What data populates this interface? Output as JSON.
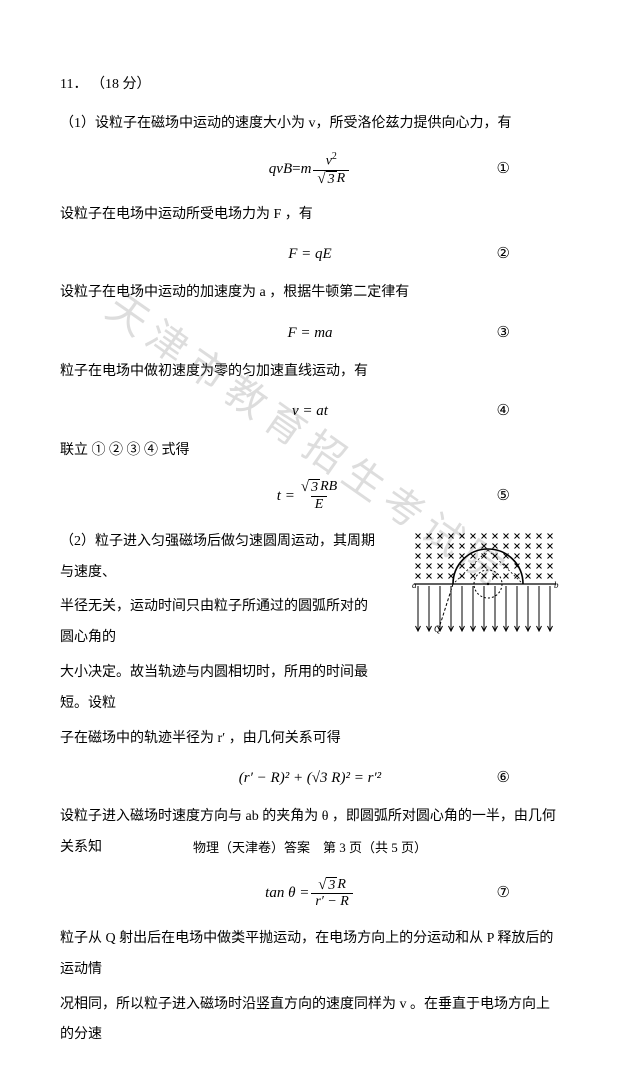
{
  "question": {
    "number": "11．",
    "points": "（18 分）"
  },
  "lines": {
    "p1": "（1）设粒子在磁场中运动的速度大小为 v，所受洛伦兹力提供向心力，有",
    "p2": "设粒子在电场中运动所受电场力为 F ，有",
    "p3": "设粒子在电场中运动的加速度为 a ，根据牛顿第二定律有",
    "p4": "粒子在电场中做初速度为零的匀加速直线运动，有",
    "p5": "联立 ① ② ③ ④ 式得",
    "p6a": "（2）粒子进入匀强磁场后做匀速圆周运动，其周期与速度、",
    "p6b": "半径无关，运动时间只由粒子所通过的圆弧所对的圆心角的",
    "p6c": "大小决定。故当轨迹与内圆相切时，所用的时间最短。设粒",
    "p6d": "子在磁场中的轨迹半径为 r′ ，由几何关系可得",
    "p7": "设粒子进入磁场时速度方向与 ab 的夹角为 θ ，即圆弧所对圆心角的一半，由几何关系知",
    "p8": "粒子从 Q 射出后在电场中做类平抛运动，在电场方向上的分运动和从 P 释放后的运动情",
    "p9": "况相同，所以粒子进入磁场时沿竖直方向的速度同样为 v 。在垂直于电场方向上的分速"
  },
  "equations": {
    "eq1": {
      "lhs_a": "qvB",
      "lhs_b": " = ",
      "num": "v",
      "num_sup": "2",
      "den_rad": "3",
      "den_tail": "R",
      "circ": "①"
    },
    "eq2": {
      "text": "F = qE",
      "circ": "②"
    },
    "eq3": {
      "text": "F = ma",
      "circ": "③"
    },
    "eq4": {
      "text": "v = at",
      "circ": "④"
    },
    "eq5": {
      "lhs": "t = ",
      "num_rad": "3",
      "num_tail": "RB",
      "den": "E",
      "circ": "⑤"
    },
    "eq6": {
      "text": "(r′ − R)² + (√3 R)² = r′²",
      "circ": "⑥"
    },
    "eq7": {
      "lhs": "tan θ = ",
      "num_rad": "3",
      "num_tail": "R",
      "den": "r′ − R",
      "circ": "⑦"
    }
  },
  "watermark": "天津市教育招生考试院",
  "footer": "物理（天津卷）答案　第 3 页（共 5 页）",
  "figure": {
    "cross_color": "#000000",
    "arrow_color": "#000000",
    "outer_arc_color": "#000000",
    "inner_dash_color": "#000000",
    "label_a": "a",
    "label_b": "b",
    "label_Q": "Q",
    "label_r": "r"
  },
  "style": {
    "page_bg": "#ffffff",
    "text_color": "#000000",
    "watermark_color": "rgba(120,120,120,0.25)",
    "fontsize_body": 14,
    "fontsize_eq": 15,
    "fontsize_footer": 13,
    "fontsize_watermark": 40,
    "watermark_angle_deg": 35
  }
}
